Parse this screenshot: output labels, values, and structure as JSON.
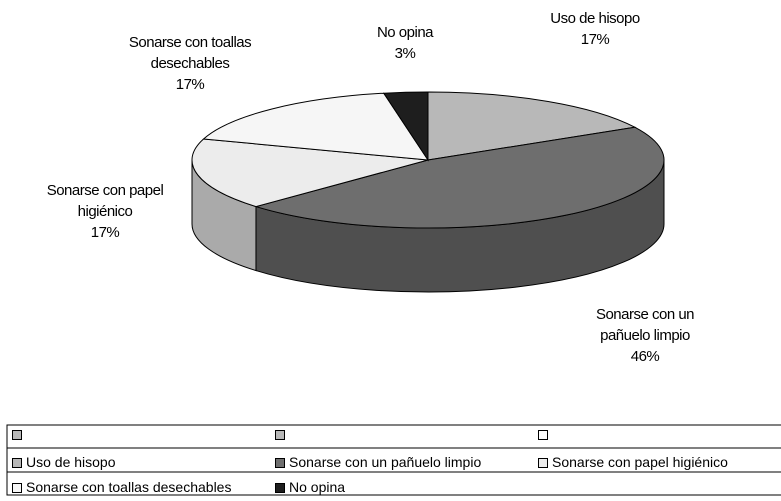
{
  "chart_data": {
    "type": "pie",
    "categories": [
      "Uso de hisopo",
      "Sonarse con un pañuelo limpio",
      "Sonarse con papel higiénico",
      "Sonarse con toallas desechables",
      "No opina"
    ],
    "values": [
      17,
      46,
      17,
      17,
      3
    ],
    "value_labels": [
      "17%",
      "46%",
      "17%",
      "17%",
      "3%"
    ],
    "colors": [
      "#b8b8b8",
      "#6e6e6e",
      "#ececec",
      "#f6f6f6",
      "#1e1e1e"
    ]
  }
}
